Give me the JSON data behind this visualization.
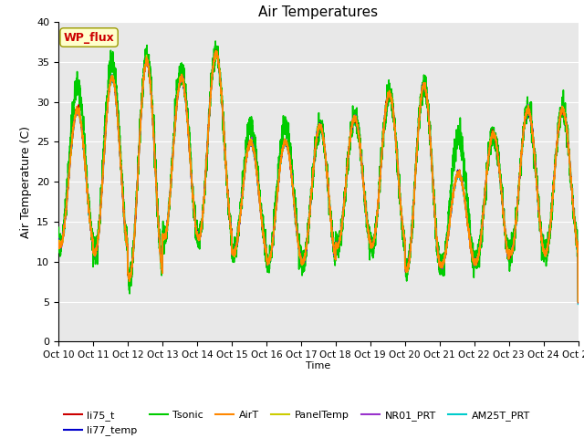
{
  "title": "Air Temperatures",
  "xlabel": "Time",
  "ylabel": "Air Temperature (C)",
  "ylim": [
    0,
    40
  ],
  "yticks": [
    0,
    5,
    10,
    15,
    20,
    25,
    30,
    35,
    40
  ],
  "series": {
    "li75_t": {
      "color": "#cc0000",
      "lw": 1.0,
      "zorder": 4
    },
    "li77_temp": {
      "color": "#0000cc",
      "lw": 1.0,
      "zorder": 4
    },
    "Tsonic": {
      "color": "#00cc00",
      "lw": 1.2,
      "zorder": 3
    },
    "AirT": {
      "color": "#ff8800",
      "lw": 1.2,
      "zorder": 5
    },
    "PanelTemp": {
      "color": "#cccc00",
      "lw": 1.0,
      "zorder": 5
    },
    "NR01_PRT": {
      "color": "#9933cc",
      "lw": 1.0,
      "zorder": 4
    },
    "AM25T_PRT": {
      "color": "#00cccc",
      "lw": 1.2,
      "zorder": 3
    }
  },
  "annotation_text": "WP_flux",
  "annotation_color": "#cc0000",
  "annotation_bg": "#ffffcc",
  "annotation_edge": "#999900",
  "background_color": "#e8e8e8",
  "figure_bg": "#ffffff",
  "n_days": 15,
  "pts_per_day": 288,
  "peak_heights": [
    29,
    33,
    35,
    33,
    36,
    25,
    25,
    27,
    28,
    31,
    32,
    21,
    26,
    29,
    29
  ],
  "trough_heights": [
    12,
    11,
    8,
    13,
    13,
    11,
    10,
    10,
    12,
    12,
    9,
    9.5,
    10,
    11,
    11
  ],
  "tsonic_peak_extra": [
    3,
    2,
    1,
    1,
    0,
    2,
    2,
    0,
    0,
    0,
    0,
    4.5,
    0,
    0,
    0
  ],
  "tsonic_noise_scale": 0.8
}
